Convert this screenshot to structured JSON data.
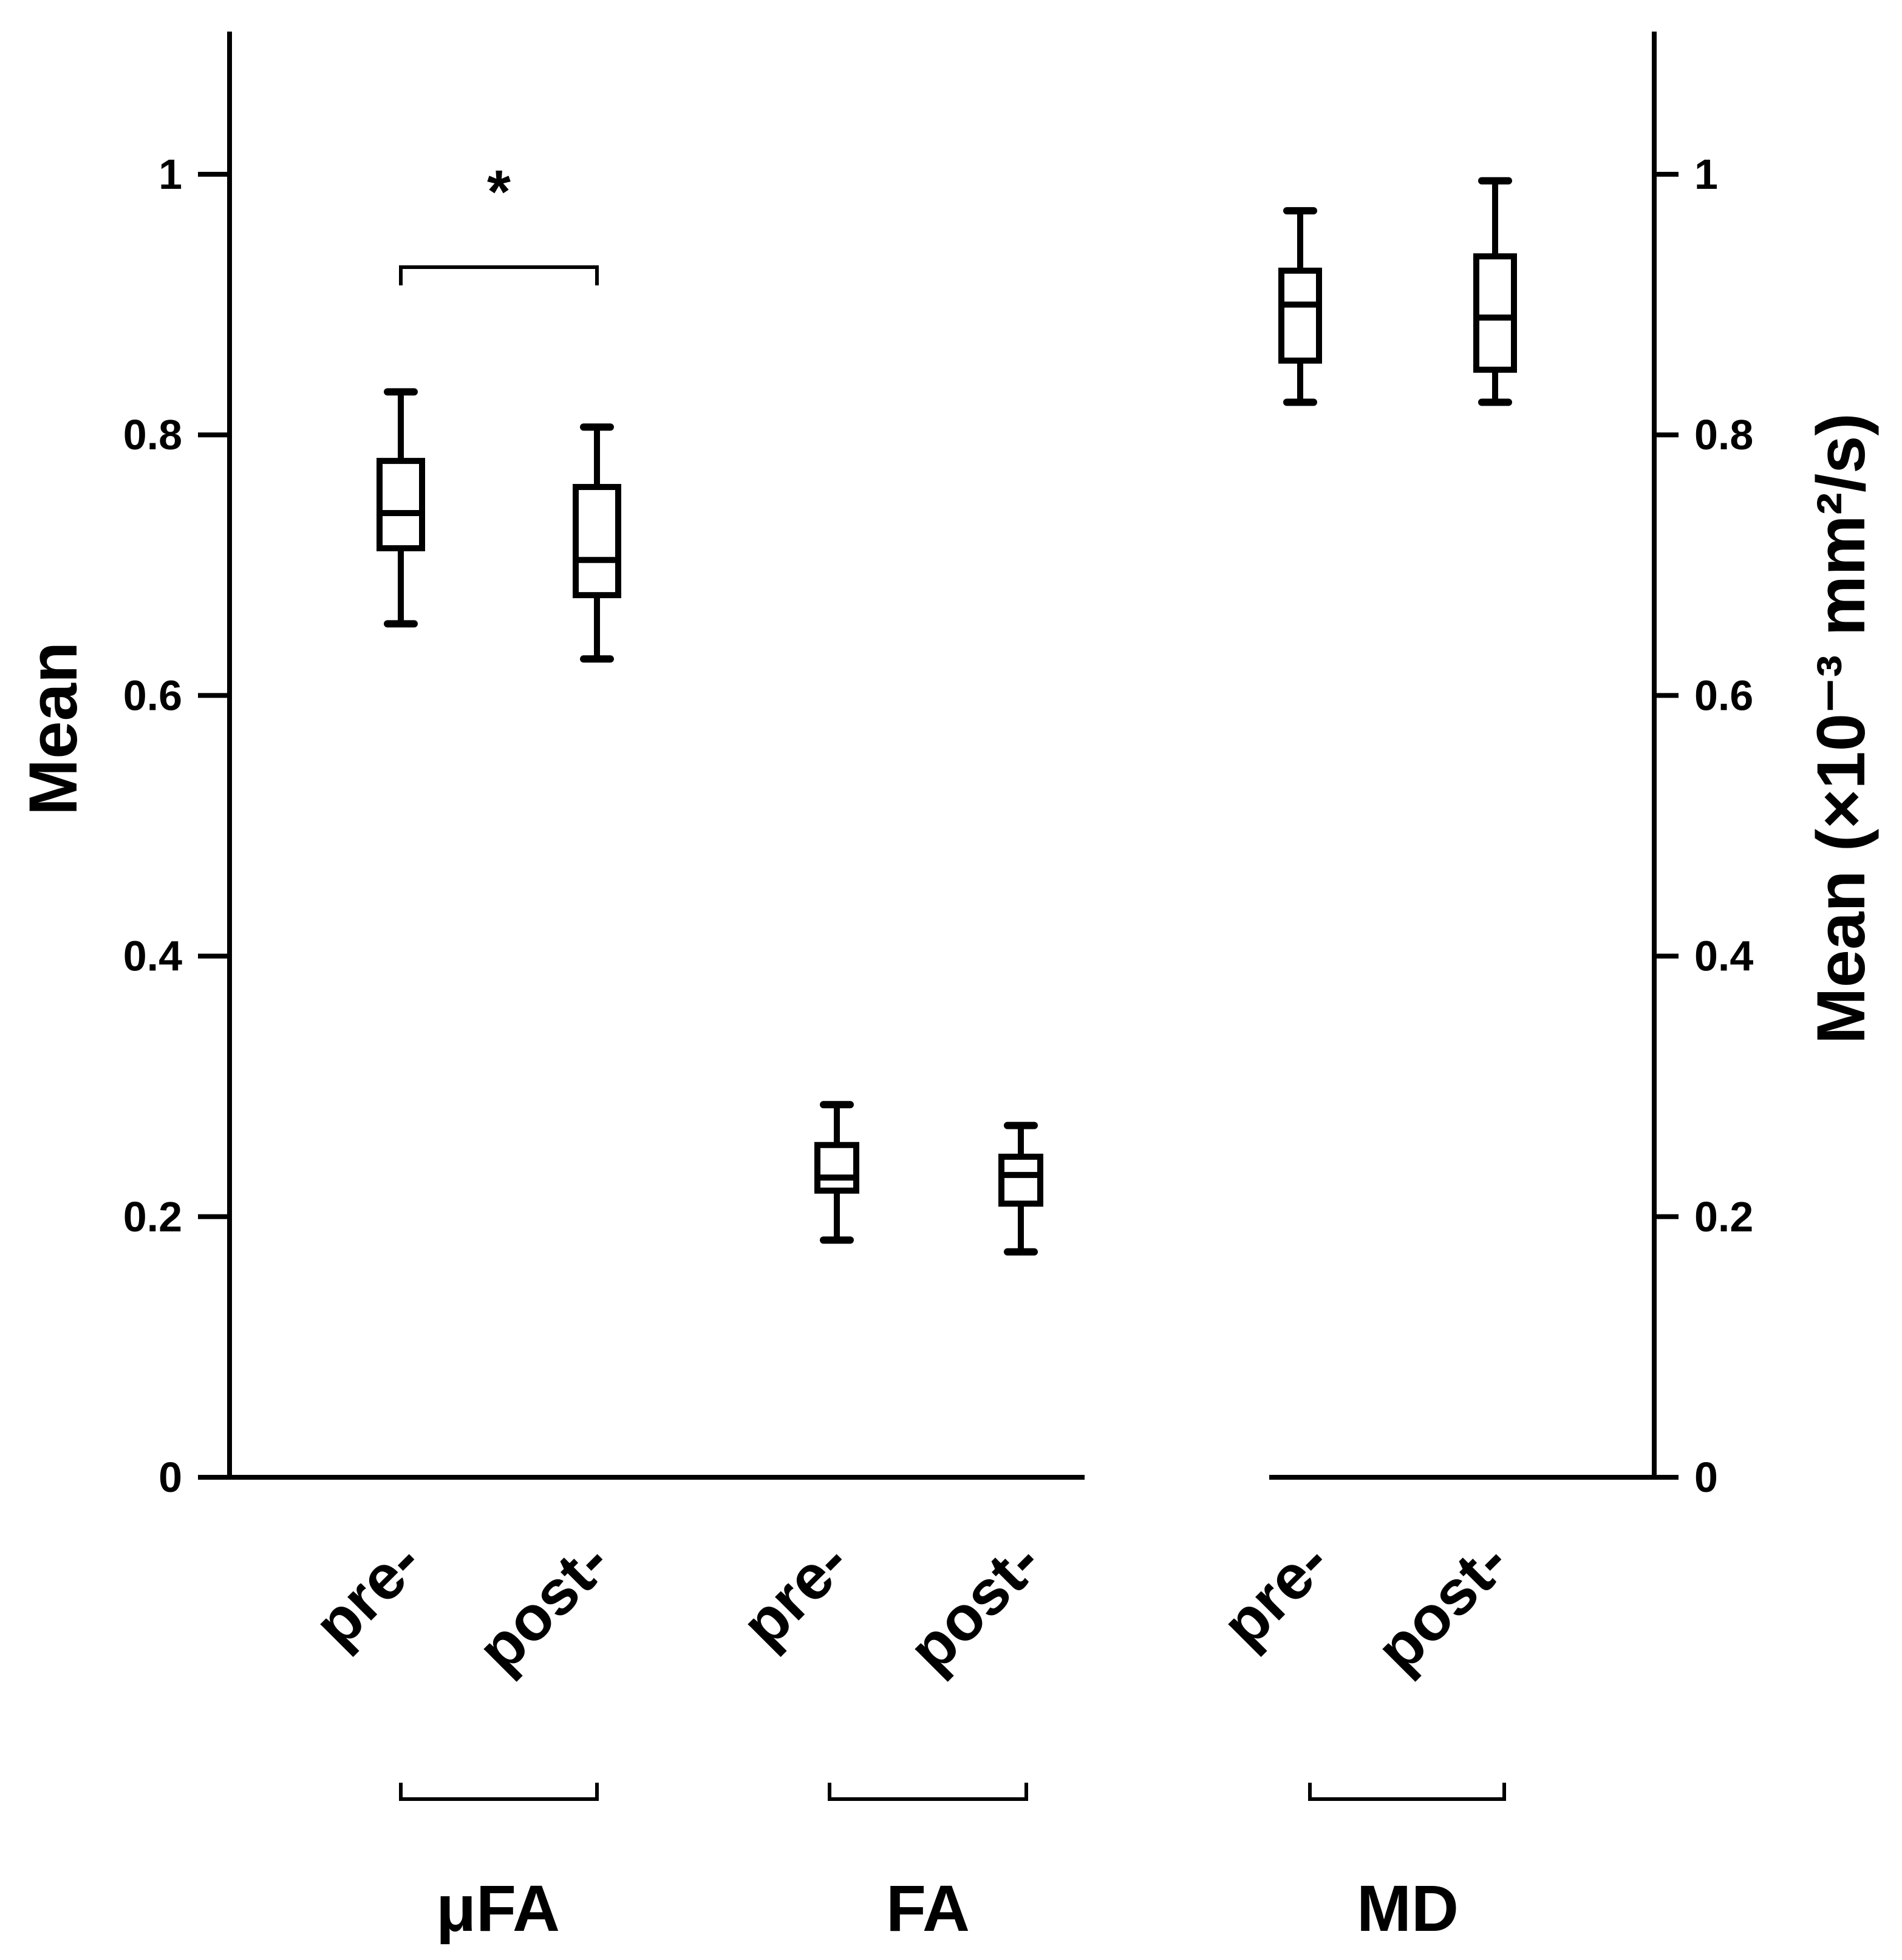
{
  "chart_data": {
    "type": "boxplot",
    "y_left_label": "Mean",
    "y_right_label": "Mean (×10⁻³ mm²/s)",
    "ylim": [
      0,
      1.1
    ],
    "yticks": [
      0,
      0.2,
      0.4,
      0.6,
      0.8,
      1
    ],
    "ytick_labels": [
      "0",
      "0.2",
      "0.4",
      "0.6",
      "0.8",
      "1"
    ],
    "groups": [
      {
        "name": "μFA",
        "axis": "left",
        "boxes": [
          {
            "label": "pre-",
            "min": 0.655,
            "q1": 0.713,
            "median": 0.74,
            "q3": 0.78,
            "max": 0.833
          },
          {
            "label": "post-",
            "min": 0.628,
            "q1": 0.677,
            "median": 0.704,
            "q3": 0.76,
            "max": 0.806
          }
        ],
        "significance": "*"
      },
      {
        "name": "FA",
        "axis": "left",
        "boxes": [
          {
            "label": "pre-",
            "min": 0.182,
            "q1": 0.22,
            "median": 0.23,
            "q3": 0.255,
            "max": 0.286
          },
          {
            "label": "post-",
            "min": 0.173,
            "q1": 0.21,
            "median": 0.232,
            "q3": 0.246,
            "max": 0.27
          }
        ]
      },
      {
        "name": "MD",
        "axis": "right",
        "boxes": [
          {
            "label": "pre-",
            "min": 0.825,
            "q1": 0.857,
            "median": 0.9,
            "q3": 0.926,
            "max": 0.972
          },
          {
            "label": "post-",
            "min": 0.825,
            "q1": 0.85,
            "median": 0.89,
            "q3": 0.937,
            "max": 0.995
          }
        ]
      }
    ]
  }
}
